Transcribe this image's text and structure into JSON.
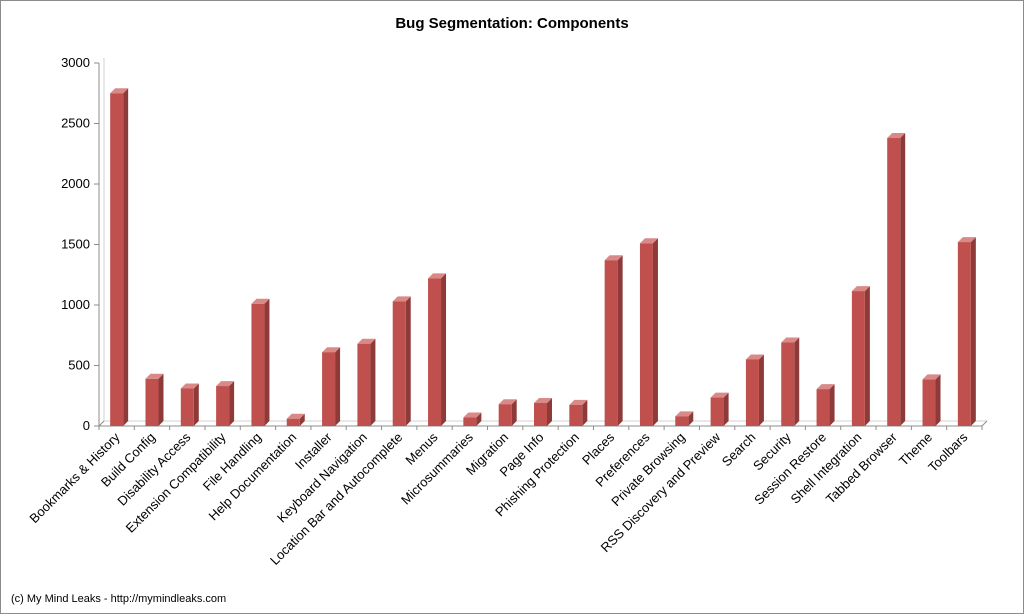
{
  "chart_data": {
    "type": "bar",
    "title": "Bug Segmentation: Components",
    "xlabel": "",
    "ylabel": "",
    "ylim": [
      0,
      3000
    ],
    "yticks": [
      "0",
      "500",
      "1000",
      "1500",
      "2000",
      "2500",
      "3000"
    ],
    "grid": false,
    "legend": "none",
    "style": "3d-column",
    "bar_color": "#c0504d",
    "bar_side_color": "#8e3a38",
    "bar_top_color": "#d98a88",
    "categories": [
      "Bookmarks & History",
      "Build Config",
      "Disability Access",
      "Extension Compatibility",
      "File Handling",
      "Help Documentation",
      "Installer",
      "Keyboard Navigation",
      "Location Bar and Autocomplete",
      "Menus",
      "Microsummaries",
      "Migration",
      "Page Info",
      "Phishing Protection",
      "Places",
      "Preferences",
      "Private Browsing",
      "RSS Discovery and Preview",
      "Search",
      "Security",
      "Session Restore",
      "Shell Integration",
      "Tabbed Browser",
      "Theme",
      "Toolbars"
    ],
    "values": [
      2750,
      390,
      310,
      330,
      1010,
      60,
      610,
      680,
      1030,
      1220,
      70,
      180,
      190,
      175,
      1370,
      1510,
      80,
      235,
      550,
      690,
      305,
      1115,
      2380,
      385,
      1520
    ]
  },
  "footer": {
    "credit": "(c) My Mind Leaks - http://mymindleaks.com"
  }
}
